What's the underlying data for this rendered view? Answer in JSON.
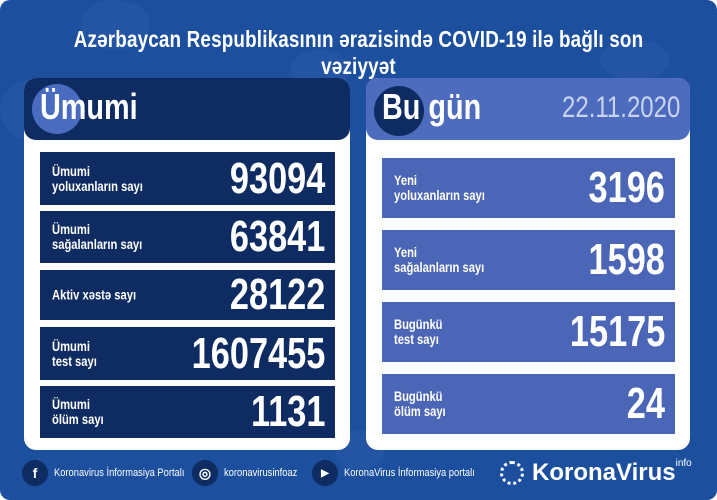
{
  "title": "Azərbaycan Respublikasının ərazisində COVID-19 ilə bağlı son vəziyyət",
  "colors": {
    "background": "#1c4f9e",
    "left_rows": "#0e2b62",
    "right_rows": "#4b66b6",
    "right_header": "#4e6cbd",
    "date": "#c9d4f0"
  },
  "total": {
    "heading": "Ümumi",
    "rows": [
      {
        "label_line1": "Ümumi",
        "label_line2": "yoluxanların sayı",
        "value": "93094"
      },
      {
        "label_line1": "Ümumi",
        "label_line2": "sağalanların sayı",
        "value": "63841"
      },
      {
        "label_line1": "Aktiv xəstə sayı",
        "label_line2": "",
        "value": "28122"
      },
      {
        "label_line1": "Ümumi",
        "label_line2": "test sayı",
        "value": "1607455"
      },
      {
        "label_line1": "Ümumi",
        "label_line2": "ölüm sayı",
        "value": "1131"
      }
    ]
  },
  "today": {
    "heading": "Bu gün",
    "date": "22.11.2020",
    "rows": [
      {
        "label_line1": "Yeni",
        "label_line2": "yoluxanların sayı",
        "value": "3196"
      },
      {
        "label_line1": "Yeni",
        "label_line2": "sağalanların sayı",
        "value": "1598"
      },
      {
        "label_line1": "Bugünkü",
        "label_line2": "test sayı",
        "value": "15175"
      },
      {
        "label_line1": "Bugünkü",
        "label_line2": "ölüm sayı",
        "value": "24"
      }
    ]
  },
  "footer": {
    "facebook": {
      "icon": "facebook-icon",
      "glyph": "f",
      "text": "Koronavirus İnformasiya Portalı"
    },
    "instagram": {
      "icon": "instagram-icon",
      "glyph": "◎",
      "text": "koronavirusinfoaz"
    },
    "youtube": {
      "icon": "youtube-icon",
      "glyph": "▶",
      "text": "KoronaVirus İnformasiya portalı"
    },
    "logo": {
      "text": "KoronaVirus",
      "sup": "info"
    }
  }
}
